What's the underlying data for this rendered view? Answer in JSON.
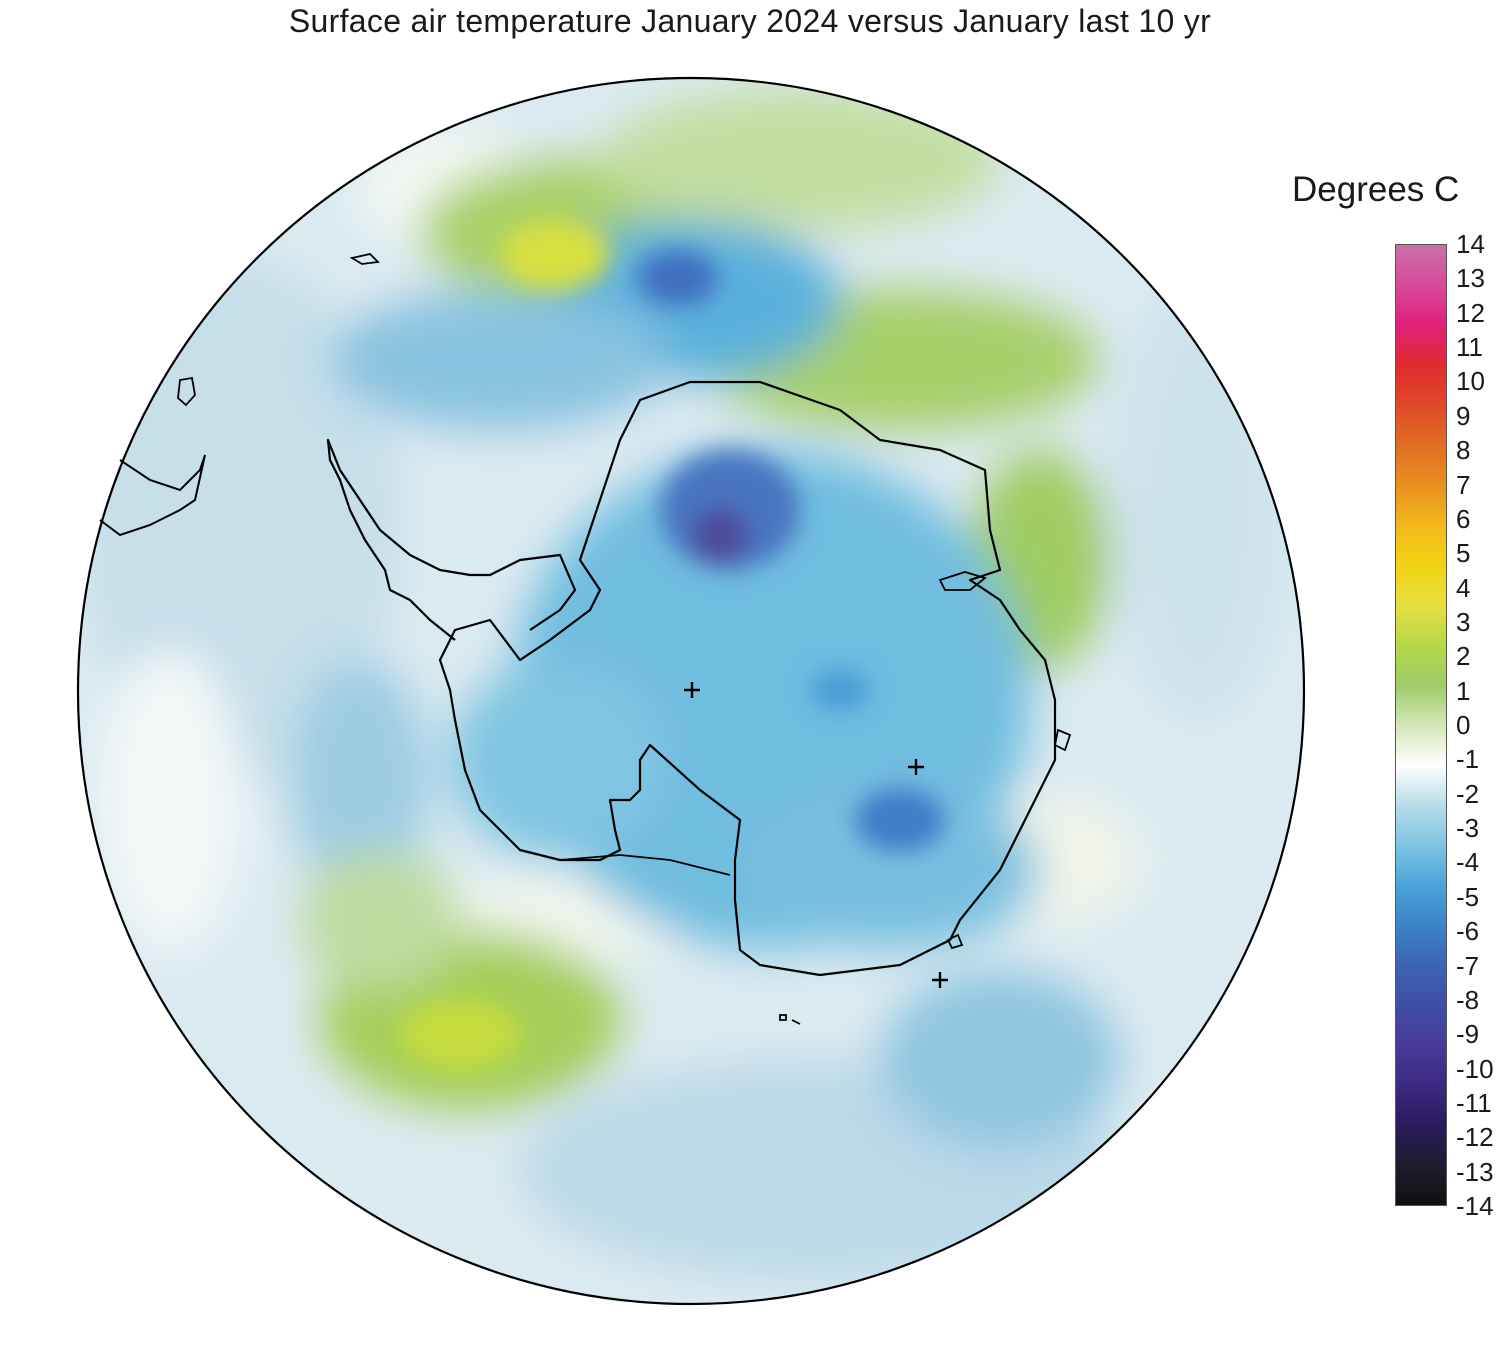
{
  "title": "Surface air temperature January 2024 versus January last 10 yr",
  "colorbar": {
    "title": "Degrees C",
    "ticks": [
      "14",
      "13",
      "12",
      "11",
      "10",
      "9",
      "8",
      "7",
      "6",
      "5",
      "4",
      "3",
      "2",
      "1",
      "0",
      "-1",
      "-2",
      "-3",
      "-4",
      "-5",
      "-6",
      "-7",
      "-8",
      "-9",
      "-10",
      "-11",
      "-12",
      "-13",
      "-14"
    ],
    "min": -14,
    "max": 14,
    "colors": [
      "#111111",
      "#1d1d2e",
      "#2a1a5e",
      "#3c2a82",
      "#4a3a98",
      "#3f4ea6",
      "#3c63b4",
      "#3c84c8",
      "#4aa4d8",
      "#7ec4e2",
      "#b8dcea",
      "#ffffff",
      "#d4e6b8",
      "#9ccc66",
      "#b6d848",
      "#e6e040",
      "#f2d214",
      "#f2b81c",
      "#e8901e",
      "#e06e24",
      "#e04a28",
      "#e02a2e",
      "#e0207a",
      "#d84a9a",
      "#c870a8"
    ]
  },
  "map": {
    "projection": "south-polar-stereographic",
    "markers": [
      "+",
      "+",
      "+"
    ]
  }
}
